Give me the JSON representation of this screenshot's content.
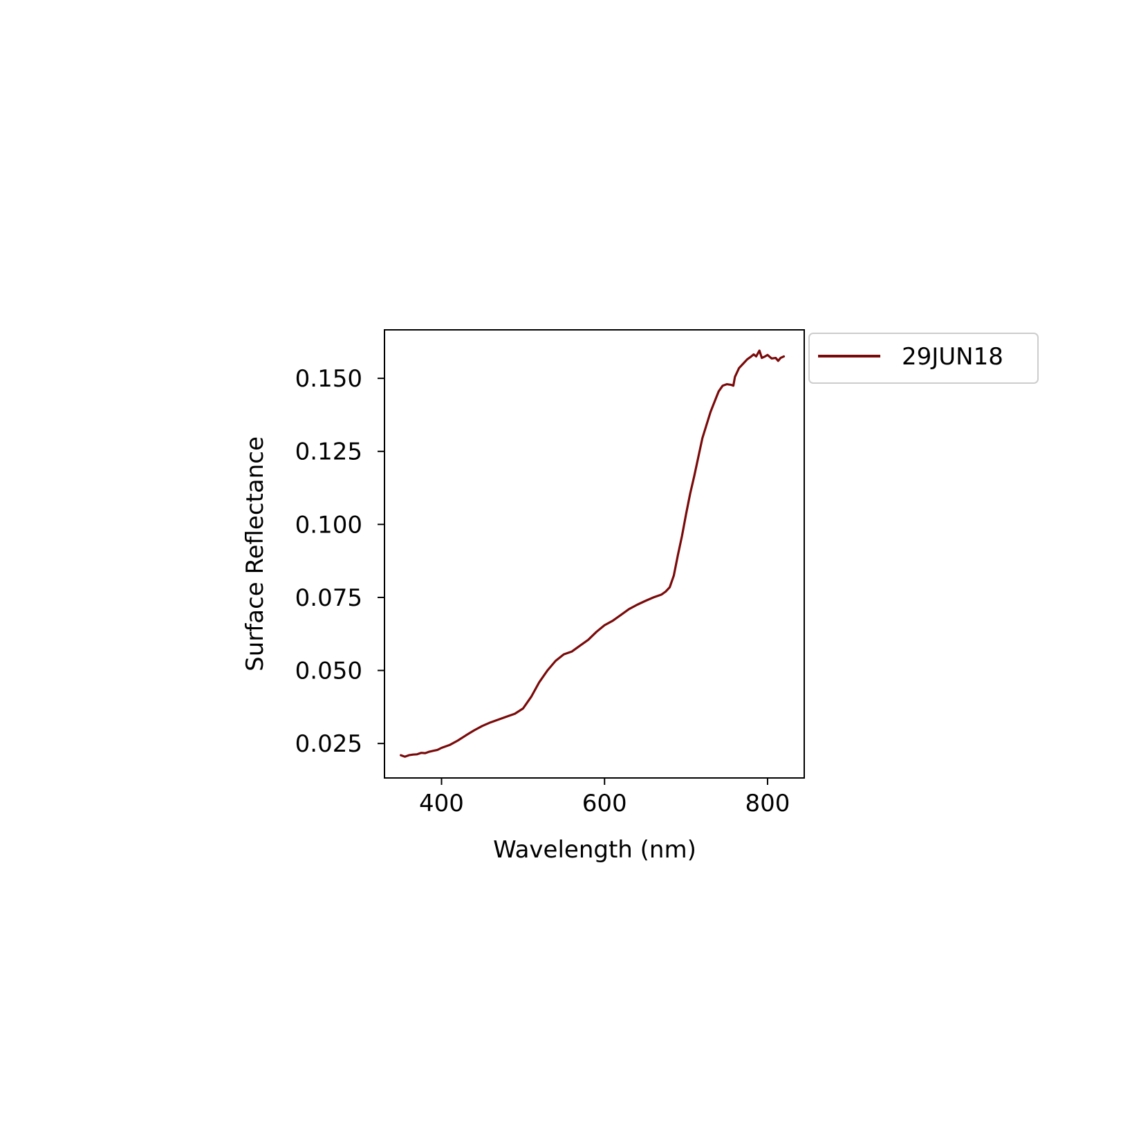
{
  "chart_data": {
    "type": "line",
    "xlabel": "Wavelength (nm)",
    "ylabel": "Surface Reflectance",
    "xlim": [
      330,
      845
    ],
    "ylim": [
      0.0132,
      0.1666
    ],
    "xticks": [
      400,
      600,
      800
    ],
    "xtick_labels": [
      "400",
      "600",
      "800"
    ],
    "yticks": [
      0.025,
      0.05,
      0.075,
      0.1,
      0.125,
      0.15
    ],
    "ytick_labels": [
      "0.025",
      "0.050",
      "0.075",
      "0.100",
      "0.125",
      "0.150"
    ],
    "grid": false,
    "legend_position": "outside-top-right",
    "series": [
      {
        "name": "29JUN18",
        "color": "#7a0a0a",
        "x": [
          350,
          355,
          360,
          365,
          370,
          375,
          380,
          385,
          390,
          395,
          400,
          410,
          420,
          430,
          440,
          450,
          460,
          470,
          480,
          490,
          500,
          510,
          520,
          530,
          540,
          550,
          560,
          570,
          580,
          590,
          600,
          610,
          620,
          630,
          640,
          650,
          660,
          670,
          675,
          680,
          685,
          690,
          695,
          700,
          705,
          710,
          715,
          720,
          725,
          730,
          735,
          740,
          745,
          750,
          755,
          758,
          760,
          765,
          770,
          775,
          780,
          783,
          786,
          790,
          793,
          797,
          800,
          805,
          810,
          813,
          816,
          820
        ],
        "y": [
          0.021,
          0.0205,
          0.021,
          0.0212,
          0.0213,
          0.0218,
          0.0217,
          0.0222,
          0.0225,
          0.0228,
          0.0235,
          0.0245,
          0.026,
          0.0278,
          0.0295,
          0.031,
          0.0322,
          0.0332,
          0.0342,
          0.0352,
          0.037,
          0.041,
          0.046,
          0.05,
          0.0533,
          0.0555,
          0.0565,
          0.0585,
          0.0605,
          0.0632,
          0.0655,
          0.067,
          0.069,
          0.071,
          0.0725,
          0.0738,
          0.075,
          0.076,
          0.077,
          0.0785,
          0.0825,
          0.0895,
          0.096,
          0.1035,
          0.1105,
          0.1165,
          0.123,
          0.1295,
          0.134,
          0.1385,
          0.142,
          0.1455,
          0.1475,
          0.148,
          0.1478,
          0.1475,
          0.1505,
          0.1535,
          0.155,
          0.1565,
          0.1575,
          0.1582,
          0.1575,
          0.1595,
          0.157,
          0.1575,
          0.158,
          0.1568,
          0.157,
          0.156,
          0.157,
          0.1575
        ]
      }
    ]
  }
}
